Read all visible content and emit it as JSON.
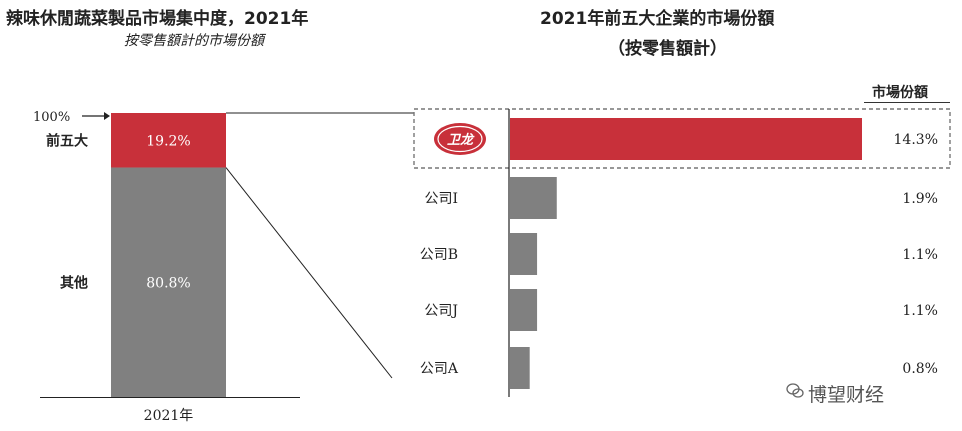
{
  "left_chart": {
    "title": "辣味休閒蔬菜製品市場集中度，2021年",
    "subtitle": "按零售額計的市場份額",
    "top100_label": "100%",
    "x_label": "2021年"
  },
  "right_chart": {
    "title": "2021年前五大企業的市場份額",
    "subtitle": "（按零售額計）",
    "share_header": "市場份額",
    "logo_text": "卫龙"
  },
  "watermark": {
    "text": "博望财经"
  },
  "colors": {
    "red": "#c8303a",
    "gray": "#808080"
  },
  "chart_data": [
    {
      "type": "bar",
      "stacked": true,
      "title": "辣味休閒蔬菜製品市場集中度，2021年",
      "subtitle": "按零售額計的市場份額",
      "categories": [
        "2021年"
      ],
      "series": [
        {
          "name": "前五大",
          "values": [
            19.2
          ],
          "label": "19.2%",
          "color": "#c8303a"
        },
        {
          "name": "其他",
          "values": [
            80.8
          ],
          "label": "80.8%",
          "color": "#808080"
        }
      ],
      "ylim": [
        0,
        100
      ]
    },
    {
      "type": "bar",
      "orientation": "horizontal",
      "title": "2021年前五大企業的市場份額",
      "subtitle": "（按零售額計）",
      "categories": [
        "卫龙",
        "公司I",
        "公司B",
        "公司J",
        "公司A"
      ],
      "values": [
        14.3,
        1.9,
        1.1,
        1.1,
        0.8
      ],
      "labels": [
        "14.3%",
        "1.9%",
        "1.1%",
        "1.1%",
        "0.8%"
      ],
      "colors": [
        "#c8303a",
        "#808080",
        "#808080",
        "#808080",
        "#808080"
      ],
      "value_header": "市場份額"
    }
  ]
}
